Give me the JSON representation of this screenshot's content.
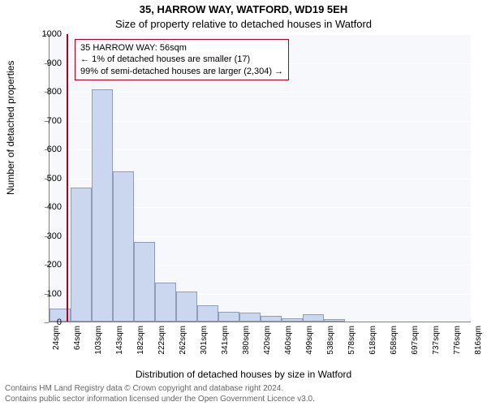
{
  "title": "35, HARROW WAY, WATFORD, WD19 5EH",
  "subtitle": "Size of property relative to detached houses in Watford",
  "xlabel": "Distribution of detached houses by size in Watford",
  "ylabel": "Number of detached properties",
  "chart": {
    "type": "histogram",
    "background_color": "#f6f8fc",
    "grid_color": "#ffffff",
    "axis_color": "#808080",
    "bar_fill": "#cbd6ef",
    "bar_border": "#8f9db8",
    "marker_color": "#b00020",
    "ylim": [
      0,
      1000
    ],
    "yticks": [
      0,
      100,
      200,
      300,
      400,
      500,
      600,
      700,
      800,
      900,
      1000
    ],
    "xticks": [
      "24sqm",
      "64sqm",
      "103sqm",
      "143sqm",
      "182sqm",
      "222sqm",
      "262sqm",
      "301sqm",
      "341sqm",
      "380sqm",
      "420sqm",
      "460sqm",
      "499sqm",
      "538sqm",
      "578sqm",
      "618sqm",
      "658sqm",
      "697sqm",
      "737sqm",
      "776sqm",
      "816sqm"
    ],
    "values": [
      45,
      465,
      805,
      520,
      275,
      135,
      105,
      55,
      35,
      30,
      20,
      10,
      25,
      8,
      0,
      0,
      0,
      0,
      0,
      0
    ],
    "marker_value": "56sqm",
    "marker_x_index": 0.81,
    "tick_fontsize": 11,
    "label_fontsize": 12,
    "title_fontsize": 13
  },
  "annotation": {
    "line1": "35 HARROW WAY: 56sqm",
    "line2": "← 1% of detached houses are smaller (17)",
    "line3": "99% of semi-detached houses are larger (2,304) →"
  },
  "footer": {
    "line1": "Contains HM Land Registry data © Crown copyright and database right 2024.",
    "line2": "Contains public sector information licensed under the Open Government Licence v3.0."
  }
}
